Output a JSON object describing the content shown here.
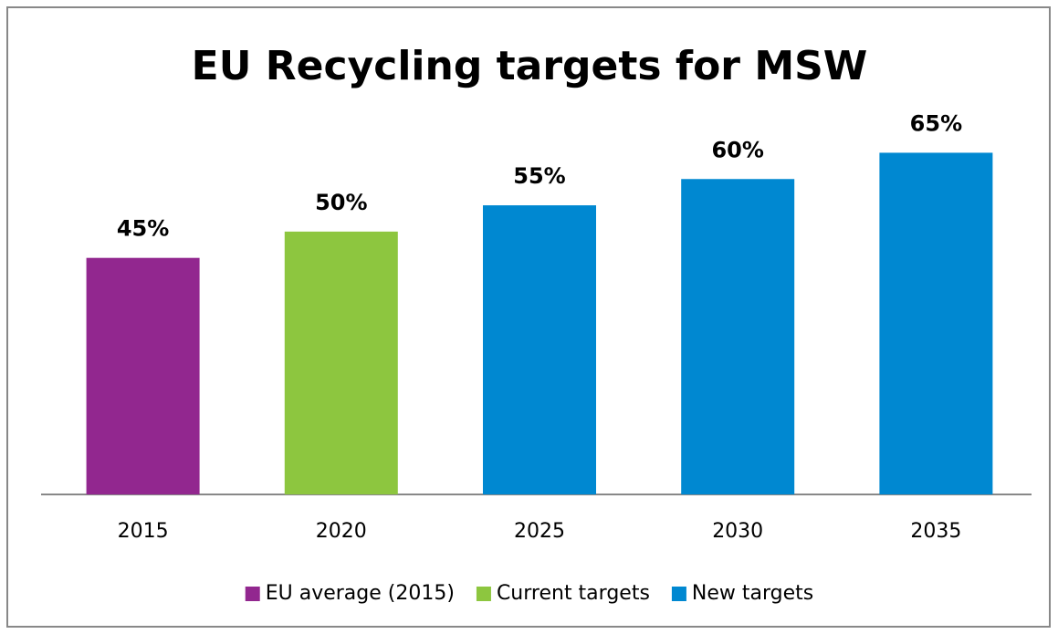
{
  "chart_data": {
    "type": "bar",
    "title": "EU Recycling targets for MSW",
    "categories": [
      "2015",
      "2020",
      "2025",
      "2030",
      "2035"
    ],
    "series": [
      {
        "name": "EU average (2015)",
        "color": "#92278f",
        "values": [
          45,
          null,
          null,
          null,
          null
        ],
        "value_labels": [
          "45%",
          null,
          null,
          null,
          null
        ]
      },
      {
        "name": "Current targets",
        "color": "#8dc63f",
        "values": [
          null,
          50,
          null,
          null,
          null
        ],
        "value_labels": [
          null,
          "50%",
          null,
          null,
          null
        ]
      },
      {
        "name": "New targets",
        "color": "#0088d1",
        "values": [
          null,
          null,
          55,
          60,
          65
        ],
        "value_labels": [
          null,
          null,
          "55%",
          "60%",
          "65%"
        ]
      }
    ],
    "ylim": [
      0,
      80
    ],
    "legend": "bottom"
  }
}
